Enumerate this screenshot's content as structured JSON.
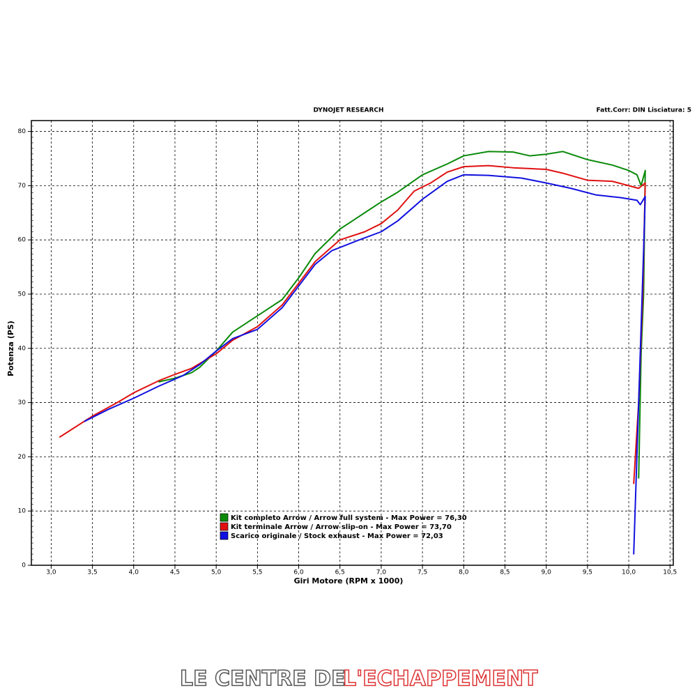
{
  "chart_data": {
    "type": "line",
    "title": "DYNOJET RESEARCH",
    "subtitle": "Fatt.Corr: DIN  Lisciatura: 5",
    "x_label": "Giri Motore (RPM x 1000)",
    "y_label": "Potenza (PS)",
    "xlim": [
      2.76,
      10.54
    ],
    "ylim": [
      0,
      82
    ],
    "xticks": [
      {
        "value": 3.0,
        "label": "3,0"
      },
      {
        "value": 3.5,
        "label": "3,5"
      },
      {
        "value": 4.0,
        "label": "4,0"
      },
      {
        "value": 4.5,
        "label": "4,5"
      },
      {
        "value": 5.0,
        "label": "5,0"
      },
      {
        "value": 5.5,
        "label": "5,5"
      },
      {
        "value": 6.0,
        "label": "6,0"
      },
      {
        "value": 6.5,
        "label": "6,5"
      },
      {
        "value": 7.0,
        "label": "7,0"
      },
      {
        "value": 7.5,
        "label": "7,5"
      },
      {
        "value": 8.0,
        "label": "8,0"
      },
      {
        "value": 8.5,
        "label": "8,5"
      },
      {
        "value": 9.0,
        "label": "9,0"
      },
      {
        "value": 9.5,
        "label": "9,5"
      },
      {
        "value": 10.0,
        "label": "10,0"
      },
      {
        "value": 10.5,
        "label": "10,5"
      }
    ],
    "yticks": [
      0,
      10,
      20,
      30,
      40,
      50,
      60,
      70,
      80
    ],
    "grid": true,
    "legend": "lower-center",
    "series": [
      {
        "name": "Kit completo Arrow / Arrow full system - Max Power = 76,30",
        "color": "#0a8a0a",
        "x": [
          4.3,
          4.5,
          4.7,
          4.8,
          5.0,
          5.2,
          5.5,
          5.8,
          6.0,
          6.2,
          6.5,
          6.8,
          7.0,
          7.2,
          7.5,
          7.8,
          8.0,
          8.3,
          8.6,
          8.8,
          9.0,
          9.2,
          9.5,
          9.8,
          10.0,
          10.1,
          10.15,
          10.2,
          10.18,
          10.15,
          10.12
        ],
        "values": [
          33.8,
          34.5,
          35.5,
          36.5,
          39.5,
          43,
          46,
          49,
          53,
          57.5,
          62,
          65,
          67,
          68.8,
          72,
          74,
          75.5,
          76.3,
          76.2,
          75.5,
          75.8,
          76.3,
          74.8,
          73.8,
          72.8,
          72,
          70,
          72.8,
          50,
          39,
          16
        ]
      },
      {
        "name": "Kit terminale Arrow / Arrow slip-on - Max Power = 73,70",
        "color": "#e01010",
        "x": [
          3.1,
          3.5,
          3.8,
          4.0,
          4.3,
          4.5,
          4.7,
          5.0,
          5.2,
          5.5,
          5.8,
          6.0,
          6.2,
          6.5,
          6.8,
          7.0,
          7.2,
          7.4,
          7.6,
          7.8,
          8.0,
          8.3,
          8.6,
          9.0,
          9.2,
          9.5,
          9.8,
          10.0,
          10.12,
          10.2,
          10.17,
          10.12,
          10.06
        ],
        "values": [
          23.6,
          27.5,
          30,
          31.8,
          34,
          35.2,
          36.3,
          39,
          41.5,
          44,
          48,
          52,
          56,
          60,
          61.5,
          63,
          65.5,
          69,
          70.5,
          72.5,
          73.5,
          73.7,
          73.3,
          73,
          72.3,
          71,
          70.8,
          70,
          69.5,
          70.5,
          50,
          30,
          15
        ]
      },
      {
        "name": "Scarico originale / Stock exhaust - Max Power = 72,03",
        "color": "#1010e0",
        "x": [
          3.4,
          3.7,
          4.0,
          4.3,
          4.6,
          4.8,
          5.0,
          5.2,
          5.5,
          5.8,
          6.0,
          6.2,
          6.4,
          6.7,
          7.0,
          7.2,
          7.5,
          7.8,
          8.0,
          8.3,
          8.7,
          9.0,
          9.3,
          9.6,
          9.9,
          10.1,
          10.14,
          10.2,
          10.18,
          10.12,
          10.06
        ],
        "values": [
          26.5,
          28.8,
          30.8,
          33,
          35,
          37,
          39.5,
          41.8,
          43.5,
          47.5,
          51.5,
          55.5,
          58,
          59.8,
          61.5,
          63.5,
          67.5,
          70.8,
          72,
          71.9,
          71.4,
          70.5,
          69.5,
          68.3,
          67.8,
          67.3,
          66.5,
          68,
          58,
          30,
          2
        ]
      }
    ]
  },
  "footer": {
    "left": "LE CENTRE DE",
    "right": "L'ECHAPPEMENT"
  }
}
